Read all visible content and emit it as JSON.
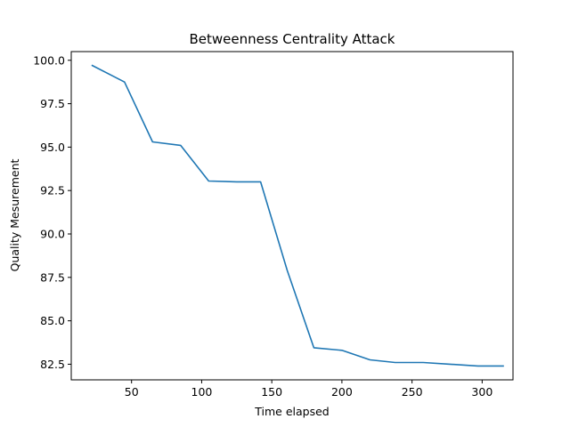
{
  "chart_data": {
    "type": "line",
    "title": "Betweenness Centrality Attack",
    "xlabel": "Time elapsed",
    "ylabel": "Quality Mesurement",
    "xlim": [
      7,
      322
    ],
    "ylim": [
      81.6,
      100.5
    ],
    "xticks": [
      50,
      100,
      150,
      200,
      250,
      300
    ],
    "yticks": [
      82.5,
      85.0,
      87.5,
      90.0,
      92.5,
      95.0,
      97.5,
      100.0
    ],
    "grid": false,
    "series": [
      {
        "color": "#1f77b4",
        "x": [
          22,
          45,
          65,
          85,
          105,
          125,
          142,
          161,
          180,
          200,
          220,
          238,
          258,
          277,
          297,
          315
        ],
        "y": [
          99.7,
          98.75,
          95.3,
          95.1,
          93.05,
          93.0,
          93.0,
          87.9,
          83.45,
          83.3,
          82.75,
          82.6,
          82.6,
          82.5,
          82.4,
          82.4
        ]
      }
    ]
  }
}
